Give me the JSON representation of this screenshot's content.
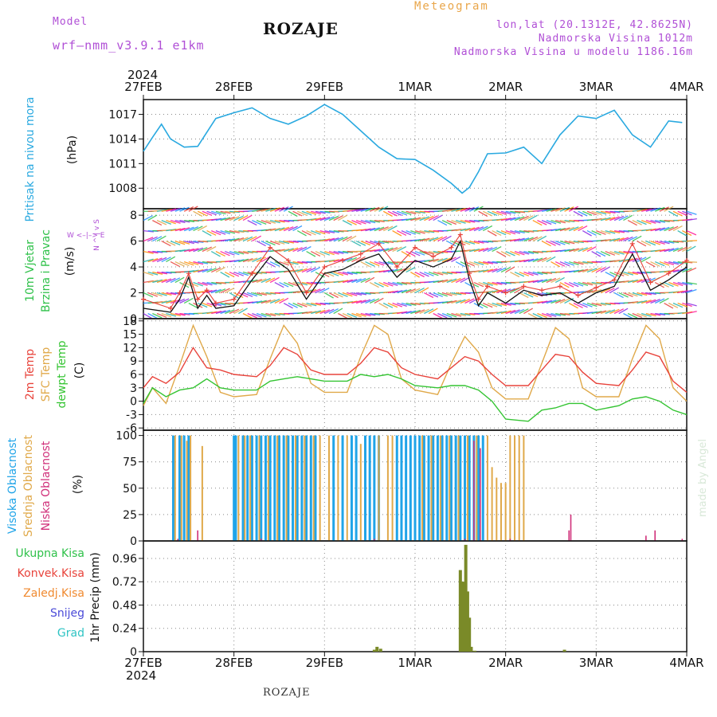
{
  "header": {
    "model_label": "Model",
    "model_name": "wrf–nmm_v3.9.1  e1km",
    "title": "ROZAJE",
    "subtitle": "Meteogram",
    "lonlat": "lon,lat (20.1312E, 42.8625N)",
    "elevation": "Nadmorska Visina 1012m",
    "model_elevation": "Nadmorska Visina u modelu 1186.16m"
  },
  "footer": {
    "station": "ROZAJE",
    "credit": "made by Angel"
  },
  "colors": {
    "pressure": "#2aa9e0",
    "wind_green": "#2fc14a",
    "black": "#111111",
    "temp2m": "#e8433b",
    "sfc": "#e0a94a",
    "dewpt": "#34c432",
    "high_cloud": "#20a4e8",
    "mid_cloud": "#e0a94a",
    "low_cloud": "#d0307a",
    "precip": "#7a8a28",
    "snow": "#4b4bd8",
    "grad": "#2fc4c4",
    "purple": "#b04fd6"
  },
  "chart_data": [
    {
      "type": "line",
      "id": "pressure",
      "ylabel_lines": [
        "Pritisak na nivou mora",
        "(hPa)"
      ],
      "yticks": [
        1008,
        1011,
        1014,
        1017
      ],
      "ylim": [
        1005.5,
        1018.8
      ],
      "x_top_labels": [
        "27FEB",
        "28FEB",
        "29FEB",
        "1MAR",
        "2MAR",
        "3MAR",
        "4MAR"
      ],
      "year_label": "2024",
      "grid": true,
      "x_days": [
        0,
        0.1,
        0.2,
        0.3,
        0.45,
        0.6,
        0.8,
        1.0,
        1.2,
        1.4,
        1.6,
        1.8,
        2.0,
        2.2,
        2.4,
        2.6,
        2.8,
        3.0,
        3.2,
        3.4,
        3.52,
        3.6,
        3.7,
        3.8,
        4.0,
        4.2,
        4.4,
        4.6,
        4.8,
        5.0,
        5.2,
        5.4,
        5.6,
        5.8,
        5.95
      ],
      "y": [
        1012.5,
        1014.2,
        1015.8,
        1014.0,
        1013.0,
        1013.1,
        1016.5,
        1017.2,
        1017.8,
        1016.5,
        1015.8,
        1016.8,
        1018.2,
        1017.0,
        1015.0,
        1013.0,
        1011.6,
        1011.5,
        1010.2,
        1008.6,
        1007.4,
        1008.1,
        1010.0,
        1012.2,
        1012.3,
        1013.0,
        1011.0,
        1014.5,
        1016.8,
        1016.5,
        1017.5,
        1014.5,
        1013.0,
        1016.2,
        1016.0
      ]
    },
    {
      "type": "line",
      "id": "wind",
      "ylabel_lines": [
        "10m Vjetar",
        "Brzina i Pravac",
        "(m/s)"
      ],
      "compass": "W <–|–> E",
      "compass_vertical": "N ^ | v S",
      "yticks": [
        0,
        2,
        4,
        6,
        8
      ],
      "ylim": [
        0,
        8.5
      ],
      "series": [
        {
          "x_days": [
            0,
            0.3,
            0.4,
            0.5,
            0.6,
            0.7,
            0.8,
            1.0,
            1.2,
            1.4,
            1.6,
            1.8,
            2.0,
            2.2,
            2.4,
            2.6,
            2.8,
            3.0,
            3.2,
            3.4,
            3.5,
            3.6,
            3.7,
            3.8,
            4.0,
            4.2,
            4.4,
            4.6,
            4.8,
            5.0,
            5.2,
            5.4,
            5.6,
            5.8,
            6.0
          ],
          "y": [
            0.8,
            0.5,
            1.5,
            3.2,
            0.8,
            1.8,
            0.8,
            1.0,
            3.0,
            4.8,
            3.8,
            1.5,
            3.5,
            3.8,
            4.5,
            5.0,
            3.2,
            4.5,
            4.0,
            4.6,
            6.0,
            3.0,
            1.0,
            2.0,
            1.2,
            2.2,
            1.8,
            2.0,
            1.2,
            2.0,
            2.5,
            5.0,
            2.2,
            3.0,
            4.0
          ]
        },
        {
          "x_days": [
            0,
            0.3,
            0.4,
            0.5,
            0.6,
            0.7,
            0.8,
            1.0,
            1.2,
            1.4,
            1.6,
            1.8,
            2.0,
            2.2,
            2.4,
            2.6,
            2.8,
            3.0,
            3.2,
            3.4,
            3.5,
            3.6,
            3.7,
            3.8,
            4.0,
            4.2,
            4.4,
            4.6,
            4.8,
            5.0,
            5.2,
            5.4,
            5.6,
            5.8,
            6.0
          ],
          "y": [
            1.5,
            0.8,
            2.0,
            3.5,
            1.5,
            2.2,
            1.2,
            1.5,
            3.5,
            5.5,
            4.5,
            2.0,
            4.0,
            4.5,
            5.0,
            5.8,
            4.0,
            5.5,
            4.8,
            5.5,
            6.5,
            3.5,
            1.5,
            2.5,
            2.0,
            2.5,
            2.2,
            2.5,
            1.8,
            2.4,
            3.0,
            5.8,
            2.8,
            3.5,
            4.5
          ]
        }
      ]
    },
    {
      "type": "line",
      "id": "temperature",
      "ylabel_lines": [
        "2m Temp",
        "SFC Temp",
        "dewpt Temp",
        "(C)"
      ],
      "yticks": [
        -6,
        -3,
        0,
        3,
        6,
        9,
        12,
        15,
        18
      ],
      "ylim": [
        -6.5,
        18.5
      ],
      "series": [
        {
          "name": "2m Temp",
          "x_days": [
            0,
            0.1,
            0.25,
            0.4,
            0.55,
            0.7,
            0.85,
            1.0,
            1.25,
            1.4,
            1.55,
            1.7,
            1.85,
            2.0,
            2.25,
            2.4,
            2.55,
            2.7,
            2.85,
            3.0,
            3.25,
            3.4,
            3.55,
            3.7,
            3.85,
            4.0,
            4.25,
            4.4,
            4.55,
            4.7,
            4.85,
            5.0,
            5.25,
            5.4,
            5.55,
            5.7,
            5.85,
            6.0
          ],
          "y": [
            3.0,
            5.5,
            4.0,
            6.5,
            12.0,
            7.5,
            7.0,
            6.0,
            5.5,
            8.0,
            12.0,
            10.5,
            7.0,
            6.0,
            6.0,
            8.5,
            12.0,
            11.0,
            7.5,
            6.0,
            5.0,
            7.5,
            10.0,
            9.0,
            6.0,
            3.5,
            3.5,
            7.0,
            10.5,
            10.0,
            6.5,
            4.0,
            3.5,
            7.0,
            11.0,
            10.0,
            4.5,
            2.0
          ]
        },
        {
          "name": "SFC Temp",
          "x_days": [
            0,
            0.1,
            0.25,
            0.4,
            0.55,
            0.7,
            0.85,
            1.0,
            1.25,
            1.4,
            1.55,
            1.7,
            1.85,
            2.0,
            2.25,
            2.4,
            2.55,
            2.7,
            2.85,
            3.0,
            3.25,
            3.4,
            3.55,
            3.7,
            3.85,
            4.0,
            4.25,
            4.4,
            4.55,
            4.7,
            4.85,
            5.0,
            5.25,
            5.4,
            5.55,
            5.7,
            5.85,
            6.0
          ],
          "y": [
            -1.0,
            3.0,
            -0.5,
            8.0,
            17.0,
            10.0,
            2.0,
            1.0,
            1.5,
            9.5,
            17.0,
            13.0,
            4.0,
            2.0,
            2.0,
            10.0,
            17.0,
            15.0,
            5.0,
            2.5,
            1.5,
            8.5,
            14.5,
            11.0,
            3.0,
            0.5,
            0.5,
            8.5,
            16.5,
            14.0,
            3.0,
            1.0,
            1.0,
            9.5,
            17.0,
            14.0,
            3.0,
            0.0
          ]
        },
        {
          "name": "dewpt Temp",
          "x_days": [
            0,
            0.1,
            0.25,
            0.4,
            0.55,
            0.7,
            0.85,
            1.0,
            1.25,
            1.4,
            1.55,
            1.7,
            1.85,
            2.0,
            2.25,
            2.4,
            2.55,
            2.7,
            2.85,
            3.0,
            3.25,
            3.4,
            3.55,
            3.7,
            3.85,
            4.0,
            4.25,
            4.4,
            4.55,
            4.7,
            4.85,
            5.0,
            5.25,
            5.4,
            5.55,
            5.7,
            5.85,
            6.0
          ],
          "y": [
            -0.5,
            3.0,
            1.0,
            2.5,
            3.0,
            5.0,
            3.0,
            2.5,
            2.5,
            4.5,
            5.0,
            5.5,
            5.0,
            4.5,
            4.5,
            6.0,
            5.5,
            6.0,
            5.0,
            3.5,
            3.0,
            3.5,
            3.5,
            2.5,
            0.0,
            -4.0,
            -4.5,
            -2.0,
            -1.5,
            -0.5,
            -0.5,
            -2.0,
            -1.0,
            0.5,
            1.0,
            0.0,
            -2.0,
            -3.0
          ]
        }
      ]
    },
    {
      "type": "bar",
      "id": "clouds",
      "ylabel_lines": [
        "Visoka Oblacnost",
        "Srednja Oblacnost",
        "Niska Oblacnost",
        "(%)"
      ],
      "yticks": [
        0,
        25,
        50,
        75,
        100
      ],
      "ylim": [
        0,
        105
      ],
      "high_x": [
        0.33,
        0.4,
        0.45,
        0.5,
        1.0,
        1.02,
        1.1,
        1.15,
        1.2,
        1.25,
        1.3,
        1.35,
        1.4,
        1.45,
        1.5,
        1.55,
        1.6,
        1.65,
        1.7,
        1.75,
        1.8,
        1.85,
        1.9,
        2.1,
        2.2,
        2.3,
        2.35,
        2.45,
        2.5,
        2.55,
        2.6,
        2.8,
        2.85,
        2.9,
        2.95,
        3.0,
        3.05,
        3.1,
        3.15,
        3.2,
        3.25,
        3.3,
        3.35,
        3.4,
        3.45,
        3.5,
        3.55,
        3.6,
        3.65,
        3.7,
        3.75
      ],
      "high_y": [
        100,
        100,
        100,
        100,
        100,
        100,
        100,
        100,
        100,
        100,
        100,
        100,
        100,
        100,
        100,
        100,
        100,
        100,
        100,
        100,
        100,
        100,
        100,
        100,
        100,
        100,
        100,
        100,
        100,
        100,
        100,
        100,
        100,
        100,
        100,
        100,
        100,
        100,
        100,
        100,
        100,
        100,
        100,
        100,
        100,
        100,
        100,
        100,
        100,
        100,
        100
      ],
      "mid_x": [
        0.35,
        0.42,
        0.48,
        0.52,
        0.65,
        1.05,
        1.12,
        1.18,
        1.28,
        1.38,
        1.48,
        1.58,
        1.68,
        1.78,
        1.88,
        1.95,
        2.05,
        2.15,
        2.25,
        2.4,
        2.6,
        2.7,
        2.75,
        3.08,
        3.18,
        3.28,
        3.38,
        3.48,
        3.58,
        3.68,
        3.8,
        3.85,
        3.9,
        3.95,
        4.0,
        4.05,
        4.1,
        4.15,
        4.2
      ],
      "mid_y": [
        100,
        100,
        95,
        100,
        90,
        100,
        100,
        100,
        100,
        100,
        100,
        100,
        100,
        100,
        100,
        100,
        100,
        100,
        100,
        92,
        100,
        100,
        100,
        100,
        100,
        100,
        100,
        100,
        100,
        100,
        100,
        70,
        60,
        55,
        55,
        100,
        100,
        100,
        100
      ],
      "low_x": [
        0.38,
        0.6,
        1.3,
        2.55,
        3.55,
        3.65,
        3.72,
        4.05,
        4.7,
        4.72,
        5.55,
        5.65,
        5.95
      ],
      "low_y": [
        2,
        10,
        2,
        2,
        2,
        95,
        88,
        2,
        10,
        25,
        5,
        10,
        2
      ]
    },
    {
      "type": "bar",
      "id": "precip",
      "ylabel_lines": [
        "1hr Precip (mm)"
      ],
      "legend": [
        "Ukupna Kisa",
        "Konvek.Kisa",
        "Zaledj.Kisa",
        "Snijeg",
        "Grad"
      ],
      "yticks": [
        0,
        0.24,
        0.48,
        0.72,
        0.96
      ],
      "ylim": [
        0,
        1.14
      ],
      "x_bottom_labels": [
        "27FEB",
        "28FEB",
        "29FEB",
        "1MAR",
        "2MAR",
        "3MAR",
        "4MAR"
      ],
      "year_label": "2024",
      "x": [
        2.55,
        2.58,
        2.62,
        3.5,
        3.52,
        3.54,
        3.56,
        3.58,
        3.6,
        3.62,
        3.66,
        4.65
      ],
      "y": [
        0.02,
        0.05,
        0.03,
        0.84,
        0.72,
        0.72,
        1.1,
        0.62,
        0.35,
        0.05,
        0.01,
        0.02
      ]
    }
  ]
}
